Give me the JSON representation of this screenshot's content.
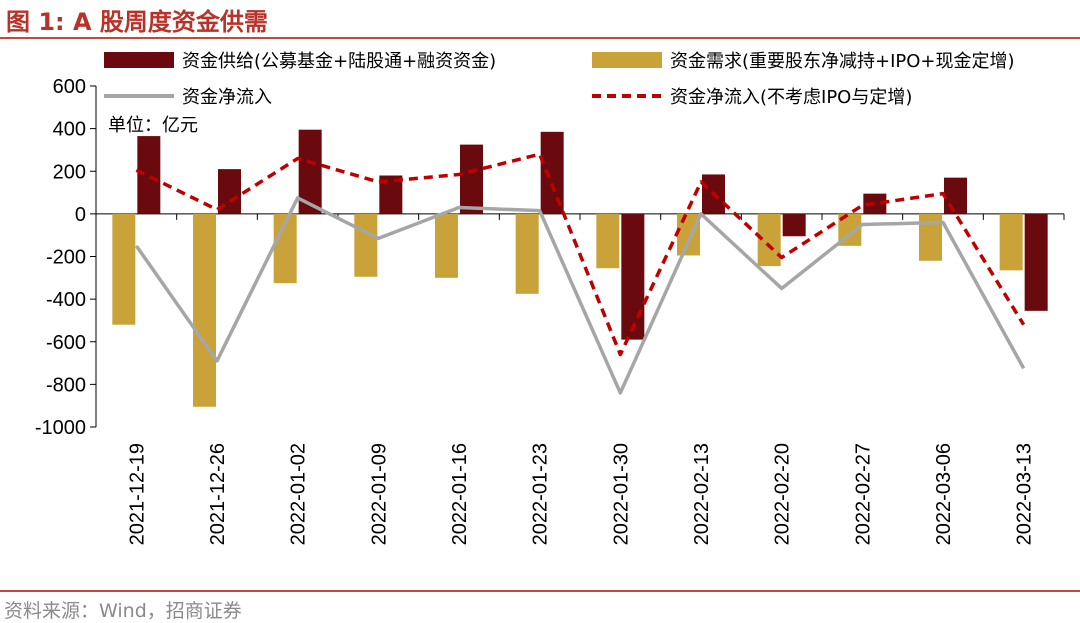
{
  "header": {
    "title": "图 1: A 股周度资金供需"
  },
  "footer": {
    "source": "资料来源：Wind，招商证券"
  },
  "chart_data": {
    "type": "bar",
    "unit_label": "单位：亿元",
    "categories": [
      "2021-12-19",
      "2021-12-26",
      "2022-01-02",
      "2022-01-09",
      "2022-01-16",
      "2022-01-23",
      "2022-01-30",
      "2022-02-13",
      "2022-02-20",
      "2022-02-27",
      "2022-03-06",
      "2022-03-13"
    ],
    "ylim": [
      -1000,
      600
    ],
    "yticks": [
      600,
      400,
      200,
      0,
      -200,
      -400,
      -600,
      -800,
      -1000
    ],
    "grid": false,
    "legend_position": "top",
    "series": [
      {
        "name": "资金供给(公募基金+陆股通+融资资金)",
        "kind": "bar",
        "color": "#6b0a0e",
        "values": [
          365,
          210,
          395,
          180,
          325,
          385,
          -590,
          185,
          -105,
          95,
          170,
          -455
        ]
      },
      {
        "name": "资金需求(重要股东净减持+IPO+现金定增)",
        "kind": "bar",
        "color": "#c9a23a",
        "values": [
          -520,
          -905,
          -325,
          -295,
          -300,
          -375,
          -255,
          -195,
          -245,
          -150,
          -220,
          -265
        ]
      },
      {
        "name": "资金净流入",
        "kind": "line",
        "color": "#a6a6a6",
        "dash": "solid",
        "values": [
          -150,
          -690,
          75,
          -115,
          30,
          15,
          -840,
          0,
          -350,
          -50,
          -40,
          -725
        ]
      },
      {
        "name": "资金净流入(不考虑IPO与定增)",
        "kind": "line",
        "color": "#c00000",
        "dash": "dashed",
        "values": [
          205,
          20,
          260,
          150,
          185,
          280,
          -660,
          150,
          -205,
          40,
          95,
          -520
        ]
      }
    ]
  }
}
